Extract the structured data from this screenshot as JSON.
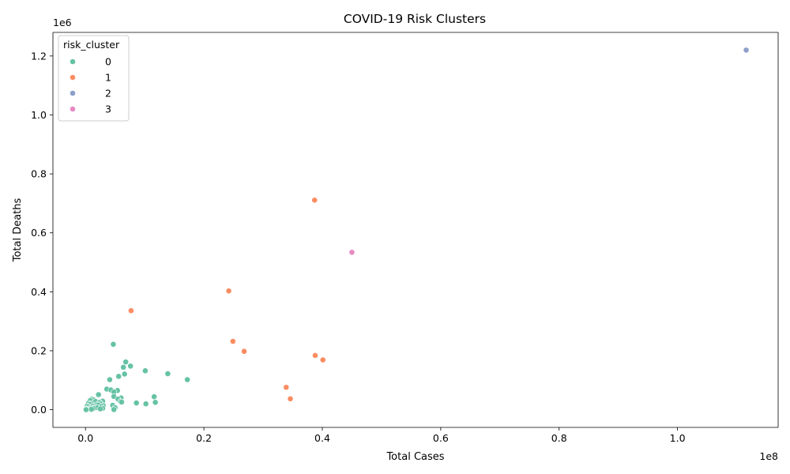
{
  "chart_data": {
    "type": "scatter",
    "title": "COVID-19 Risk Clusters",
    "xlabel": "Total Cases",
    "ylabel": "Total Deaths",
    "x_offset_label": "1e8",
    "y_offset_label": "1e6",
    "xlim": [
      -5500000,
      117000000
    ],
    "ylim": [
      -60000,
      1280000
    ],
    "x_ticks": [
      0,
      20000000,
      40000000,
      60000000,
      80000000,
      100000000
    ],
    "x_tick_labels": [
      "0.0",
      "0.2",
      "0.4",
      "0.6",
      "0.8",
      "1.0"
    ],
    "y_ticks": [
      0,
      200000,
      400000,
      600000,
      800000,
      1000000,
      1200000
    ],
    "y_tick_labels": [
      "0.0",
      "0.2",
      "0.4",
      "0.6",
      "0.8",
      "1.0",
      "1.2"
    ],
    "grid": false,
    "legend": {
      "title": "risk_cluster",
      "placement": "top-left",
      "entries": [
        {
          "label": "0",
          "color": "#66c2a5"
        },
        {
          "label": "1",
          "color": "#fc8d62"
        },
        {
          "label": "2",
          "color": "#8da0cb"
        },
        {
          "label": "3",
          "color": "#e78ac3"
        }
      ]
    },
    "series": [
      {
        "cluster": "0",
        "color": "#66c2a5",
        "points": [
          [
            4700000,
            222000
          ],
          [
            6800000,
            162000
          ],
          [
            7600000,
            148000
          ],
          [
            6400000,
            144000
          ],
          [
            10100000,
            132000
          ],
          [
            13900000,
            122000
          ],
          [
            6600000,
            121000
          ],
          [
            5600000,
            113000
          ],
          [
            17200000,
            102000
          ],
          [
            4100000,
            102000
          ],
          [
            3600000,
            70000
          ],
          [
            4300000,
            67000
          ],
          [
            5400000,
            65000
          ],
          [
            4800000,
            60000
          ],
          [
            2200000,
            51000
          ],
          [
            4800000,
            45000
          ],
          [
            11600000,
            44000
          ],
          [
            6000000,
            40000
          ],
          [
            5500000,
            36000
          ],
          [
            1100000,
            36000
          ],
          [
            1400000,
            33000
          ],
          [
            800000,
            31000
          ],
          [
            2900000,
            29000
          ],
          [
            1700000,
            28000
          ],
          [
            5900000,
            28000
          ],
          [
            6100000,
            26000
          ],
          [
            11800000,
            25000
          ],
          [
            8600000,
            23000
          ],
          [
            2400000,
            25000
          ],
          [
            500000,
            22000
          ],
          [
            1000000,
            20000
          ],
          [
            2600000,
            20000
          ],
          [
            10200000,
            20000
          ],
          [
            700000,
            18000
          ],
          [
            1900000,
            17000
          ],
          [
            2200000,
            16000
          ],
          [
            4600000,
            15000
          ],
          [
            3000000,
            14000
          ],
          [
            300000,
            13000
          ],
          [
            1200000,
            12000
          ],
          [
            2700000,
            11000
          ],
          [
            500000,
            9000
          ],
          [
            1600000,
            8000
          ],
          [
            2000000,
            7000
          ],
          [
            5000000,
            7000
          ],
          [
            900000,
            6000
          ],
          [
            2900000,
            5000
          ],
          [
            1300000,
            4000
          ],
          [
            600000,
            3000
          ],
          [
            2500000,
            3000
          ],
          [
            200000,
            2000
          ],
          [
            1000000,
            1500
          ],
          [
            100000,
            1000
          ],
          [
            4800000,
            500
          ],
          [
            100000,
            200
          ]
        ]
      },
      {
        "cluster": "1",
        "color": "#fc8d62",
        "points": [
          [
            38700000,
            711000
          ],
          [
            24200000,
            403000
          ],
          [
            7700000,
            336000
          ],
          [
            24900000,
            232000
          ],
          [
            26800000,
            198000
          ],
          [
            38800000,
            184000
          ],
          [
            40100000,
            169000
          ],
          [
            33900000,
            76000
          ],
          [
            34600000,
            37000
          ]
        ]
      },
      {
        "cluster": "2",
        "color": "#8da0cb",
        "points": [
          [
            111600000,
            1220000
          ]
        ]
      },
      {
        "cluster": "3",
        "color": "#e78ac3",
        "points": [
          [
            45000000,
            534000
          ]
        ]
      }
    ]
  }
}
